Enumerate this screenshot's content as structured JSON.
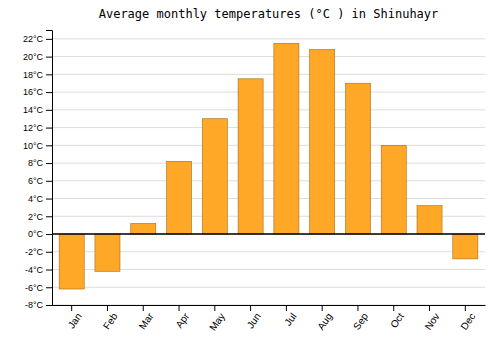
{
  "chart_data": {
    "type": "bar",
    "title": "Average monthly temperatures (°C ) in Shinuhayr",
    "categories": [
      "Jan",
      "Feb",
      "Mar",
      "Apr",
      "May",
      "Jun",
      "Jul",
      "Aug",
      "Sep",
      "Oct",
      "Nov",
      "Dec"
    ],
    "values": [
      -6.2,
      -4.2,
      1.2,
      8.2,
      13.0,
      17.5,
      21.5,
      20.8,
      17.0,
      10.0,
      3.2,
      -2.8
    ],
    "color": "#FFA726",
    "ylim": [
      -8,
      23
    ],
    "yticks": [
      {
        "value": -8,
        "label": "-8°C"
      },
      {
        "value": -6,
        "label": "-6°C"
      },
      {
        "value": -4,
        "label": "-4°C"
      },
      {
        "value": -2,
        "label": "-2°C"
      },
      {
        "value": 0,
        "label": "0°C"
      },
      {
        "value": 2,
        "label": "2°C"
      },
      {
        "value": 4,
        "label": "4°C"
      },
      {
        "value": 6,
        "label": "6°C"
      },
      {
        "value": 8,
        "label": "8°C"
      },
      {
        "value": 10,
        "label": "10°C"
      },
      {
        "value": 12,
        "label": "12°C"
      },
      {
        "value": 14,
        "label": "14°C"
      },
      {
        "value": 16,
        "label": "16°C"
      },
      {
        "value": 18,
        "label": "18°C"
      },
      {
        "value": 20,
        "label": "20°C"
      },
      {
        "value": 22,
        "label": "22°C"
      }
    ],
    "grid": true
  }
}
